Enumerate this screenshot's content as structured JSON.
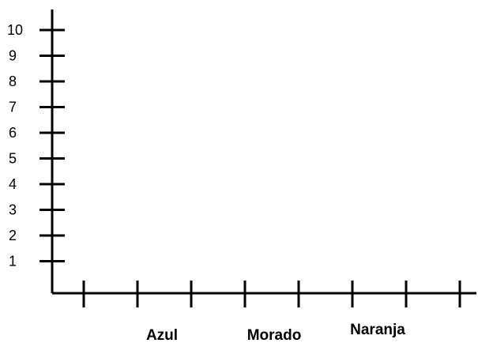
{
  "chart_data": {
    "type": "bar",
    "title": "",
    "xlabel": "",
    "ylabel": "",
    "ylim": [
      0,
      10
    ],
    "y_ticks": [
      1,
      2,
      3,
      4,
      5,
      6,
      7,
      8,
      9,
      10
    ],
    "categories": [
      "Azul",
      "Morado",
      "Naranja"
    ],
    "values": [
      null,
      null,
      null
    ],
    "grid": false
  },
  "colors": {
    "axis": "#000000",
    "background": "#ffffff"
  }
}
